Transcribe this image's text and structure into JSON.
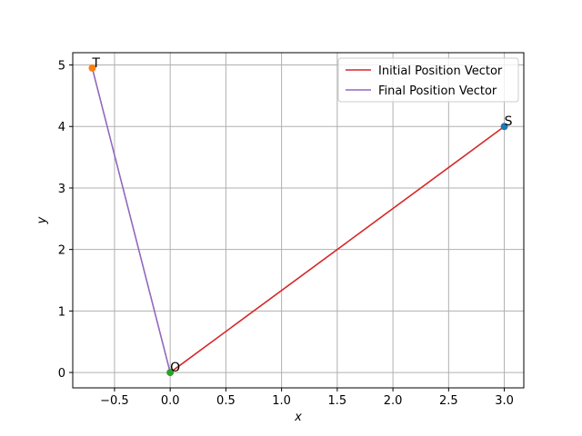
{
  "chart_data": {
    "type": "line",
    "title": "",
    "xlabel": "x",
    "ylabel": "y",
    "xlim": [
      -0.875,
      3.175
    ],
    "ylim": [
      -0.25,
      5.2
    ],
    "xticks": [
      -0.5,
      0.0,
      0.5,
      1.0,
      1.5,
      2.0,
      2.5,
      3.0
    ],
    "xtick_labels": [
      "−0.5",
      "0.0",
      "0.5",
      "1.0",
      "1.5",
      "2.0",
      "2.5",
      "3.0"
    ],
    "yticks": [
      0,
      1,
      2,
      3,
      4,
      5
    ],
    "ytick_labels": [
      "0",
      "1",
      "2",
      "3",
      "4",
      "5"
    ],
    "grid": true,
    "legend_position": "top-right",
    "series": [
      {
        "name": "Initial Position Vector",
        "color": "#d62728",
        "x": [
          0,
          3
        ],
        "y": [
          0,
          4
        ]
      },
      {
        "name": "Final Position Vector",
        "color": "#9467bd",
        "x": [
          0,
          -0.7
        ],
        "y": [
          0,
          4.95
        ]
      }
    ],
    "points": [
      {
        "label": "S",
        "x": 3,
        "y": 4,
        "color": "#1f77b4"
      },
      {
        "label": "T",
        "x": -0.7,
        "y": 4.95,
        "color": "#ff7f0e"
      },
      {
        "label": "O",
        "x": 0,
        "y": 0,
        "color": "#2ca02c"
      }
    ]
  }
}
